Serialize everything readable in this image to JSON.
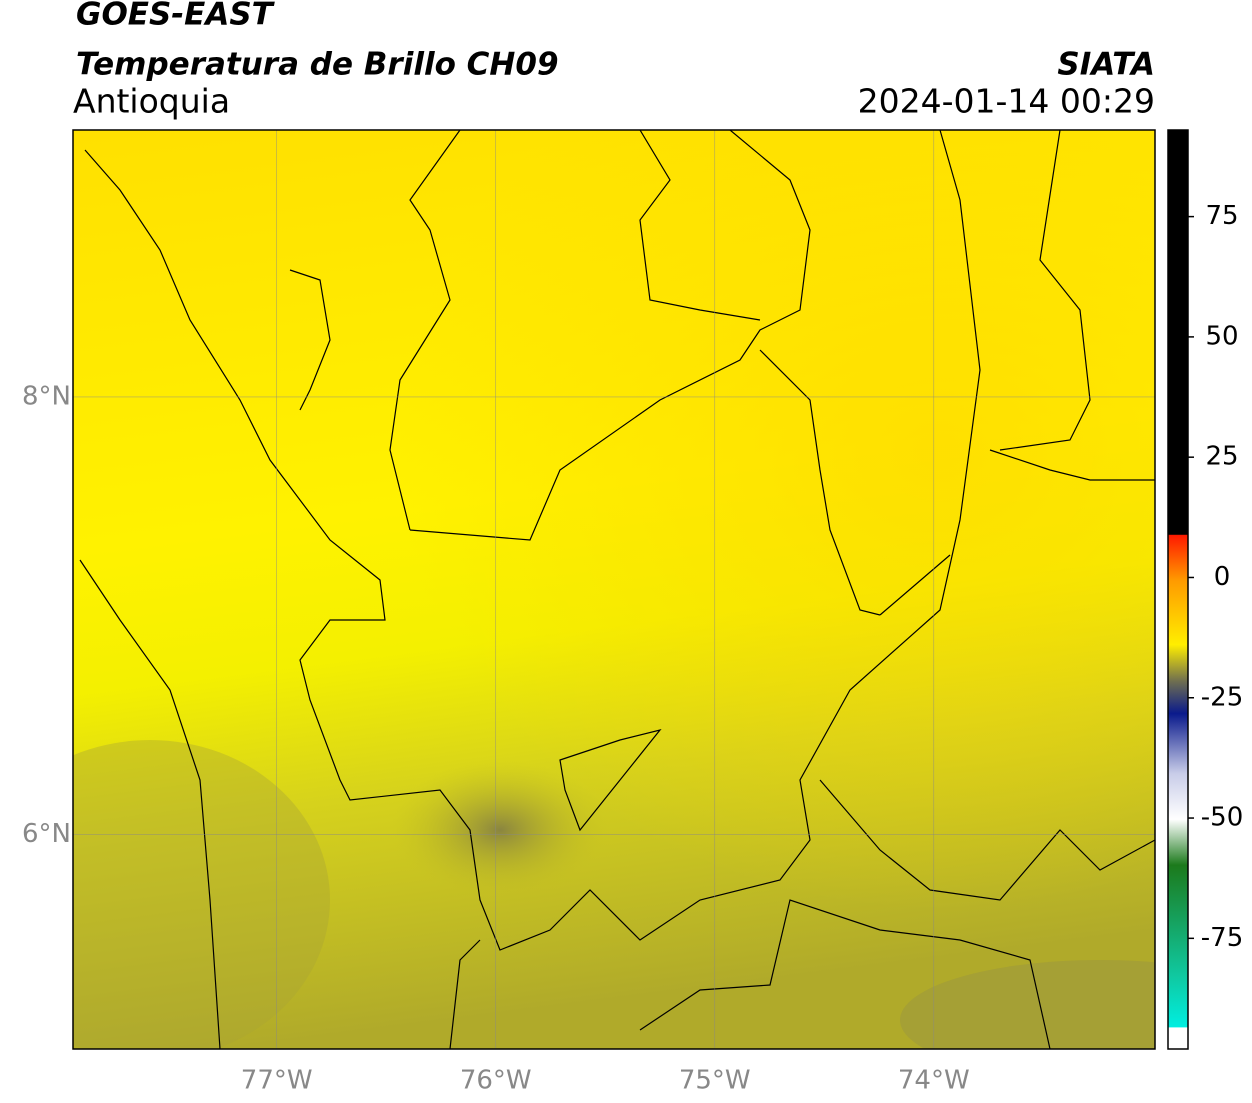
{
  "header": {
    "satellite": "GOES-EAST",
    "product": "Temperatura de Brillo CH09",
    "region": "Antioquia",
    "source": "SIATA",
    "datetime": "2024-01-14 00:29"
  },
  "map": {
    "xlim": [
      -77.93,
      -72.99
    ],
    "ylim": [
      5.02,
      9.22
    ],
    "xticks": [
      {
        "value": -77,
        "label": "77°W"
      },
      {
        "value": -76,
        "label": "76°W"
      },
      {
        "value": -75,
        "label": "75°W"
      },
      {
        "value": -74,
        "label": "74°W"
      }
    ],
    "yticks": [
      {
        "value": 8,
        "label": "8°N"
      },
      {
        "value": 6,
        "label": "6°N"
      }
    ],
    "grid": true
  },
  "colorbar": {
    "lim": [
      -98,
      93
    ],
    "ticks": [
      75,
      50,
      25,
      0,
      -25,
      -50,
      -75
    ]
  }
}
